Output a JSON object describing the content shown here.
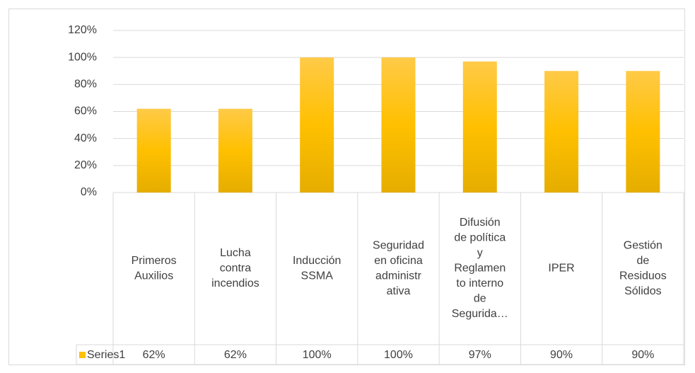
{
  "chart_data": {
    "type": "bar",
    "categories": [
      "Primeros\nAuxilios",
      "Lucha\ncontra\nincendios",
      "Inducción\nSSMA",
      "Seguridad\nen oficina\nadministr\nativa",
      "Difusión\nde política\ny\nReglamen\nto interno\nde\nSegurida…",
      "IPER",
      "Gestión\nde\nResiduos\nSólidos"
    ],
    "series": [
      {
        "name": "Series1",
        "color": "#ffc000",
        "values": [
          62,
          62,
          100,
          100,
          97,
          90,
          90
        ],
        "value_labels": [
          "62%",
          "62%",
          "100%",
          "100%",
          "97%",
          "90%",
          "90%"
        ]
      }
    ],
    "ylim": [
      0,
      120
    ],
    "yticks": [
      {
        "value": 0,
        "label": "0%"
      },
      {
        "value": 20,
        "label": "20%"
      },
      {
        "value": 40,
        "label": "40%"
      },
      {
        "value": 60,
        "label": "60%"
      },
      {
        "value": 80,
        "label": "80%"
      },
      {
        "value": 100,
        "label": "100%"
      },
      {
        "value": 120,
        "label": "120%"
      }
    ],
    "grid": true,
    "data_table": true
  }
}
